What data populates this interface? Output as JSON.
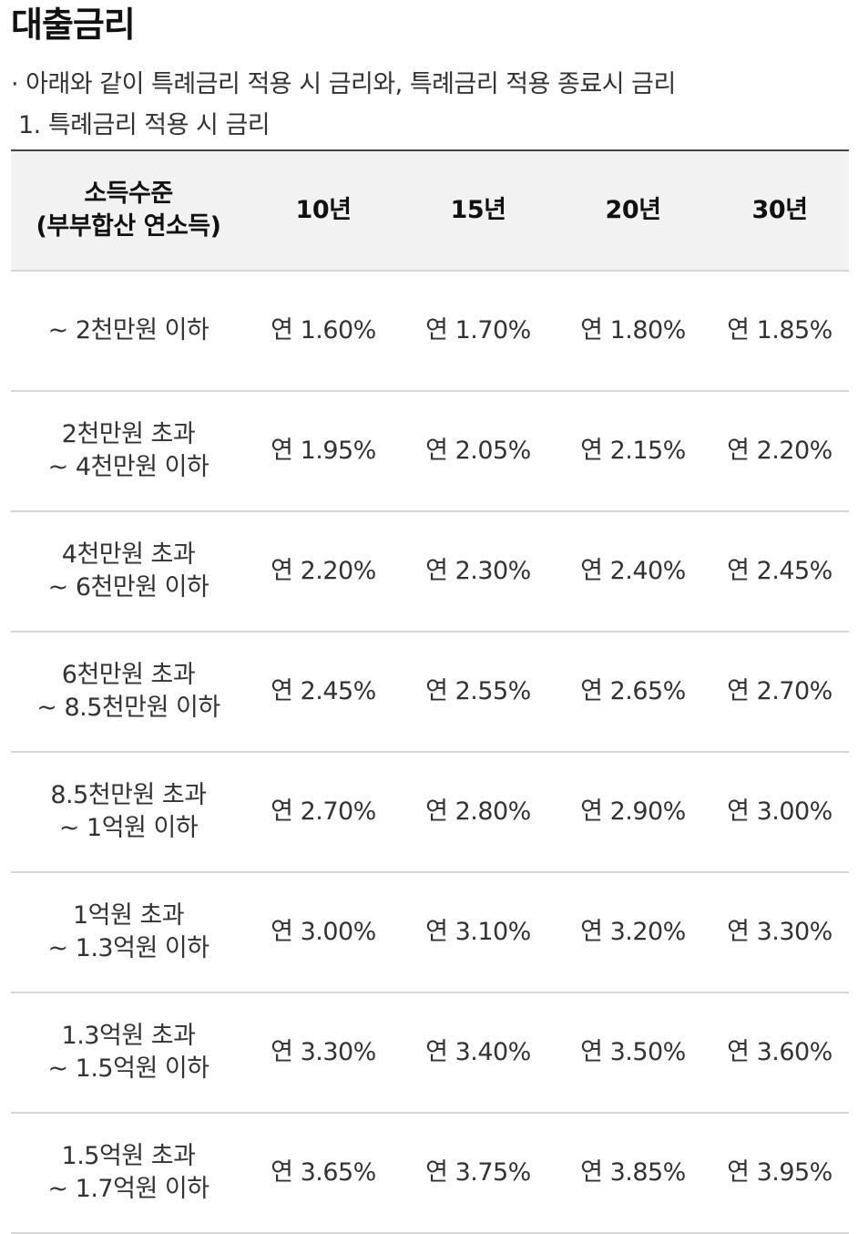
{
  "title": "대출금리",
  "note": {
    "bullet": "·  아래와 같이 특례금리 적용 시 금리와, 특례금리 적용 종료시 금리",
    "section": "1. 특례금리 적용 시 금리"
  },
  "table": {
    "header": {
      "income_line1": "소득수준",
      "income_line2": "(부부합산 연소득)",
      "terms": [
        "10년",
        "15년",
        "20년",
        "30년"
      ]
    },
    "rows": [
      {
        "income_line1": "~ 2천만원 이하",
        "income_line2": "",
        "rates": [
          "연 1.60%",
          "연 1.70%",
          "연 1.80%",
          "연 1.85%"
        ]
      },
      {
        "income_line1": "2천만원 초과",
        "income_line2": "~ 4천만원 이하",
        "rates": [
          "연 1.95%",
          "연 2.05%",
          "연 2.15%",
          "연 2.20%"
        ]
      },
      {
        "income_line1": "4천만원 초과",
        "income_line2": "~ 6천만원 이하",
        "rates": [
          "연 2.20%",
          "연 2.30%",
          "연 2.40%",
          "연 2.45%"
        ]
      },
      {
        "income_line1": "6천만원 초과",
        "income_line2": "~ 8.5천만원 이하",
        "rates": [
          "연 2.45%",
          "연 2.55%",
          "연 2.65%",
          "연 2.70%"
        ]
      },
      {
        "income_line1": "8.5천만원 초과",
        "income_line2": "~ 1억원 이하",
        "rates": [
          "연 2.70%",
          "연 2.80%",
          "연 2.90%",
          "연 3.00%"
        ]
      },
      {
        "income_line1": "1억원 초과",
        "income_line2": "~ 1.3억원 이하",
        "rates": [
          "연 3.00%",
          "연 3.10%",
          "연 3.20%",
          "연 3.30%"
        ]
      },
      {
        "income_line1": "1.3억원 초과",
        "income_line2": "~ 1.5억원 이하",
        "rates": [
          "연 3.30%",
          "연 3.40%",
          "연 3.50%",
          "연 3.60%"
        ]
      },
      {
        "income_line1": "1.5억원 초과",
        "income_line2": "~ 1.7억원 이하",
        "rates": [
          "연 3.65%",
          "연 3.75%",
          "연 3.85%",
          "연 3.95%"
        ]
      }
    ]
  }
}
